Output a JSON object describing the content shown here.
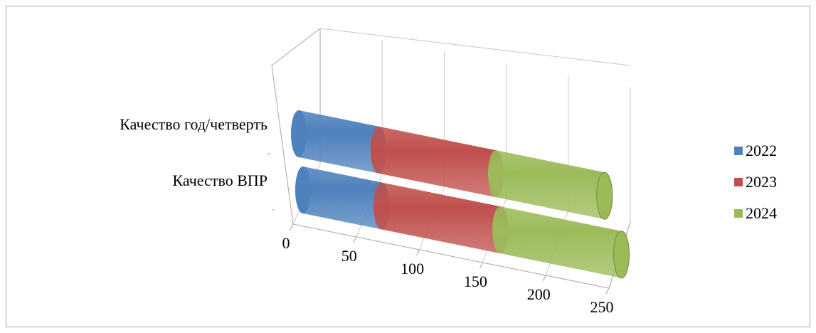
{
  "chart_data": {
    "type": "bar",
    "orientation": "horizontal",
    "stacked": true,
    "style": "3d-cylinder",
    "categories": [
      "Качество ВПР",
      "Качество год/четверть"
    ],
    "series": [
      {
        "name": "2022",
        "color": "#4f81bd",
        "values": [
          62,
          63
        ]
      },
      {
        "name": "2023",
        "color": "#c0504d",
        "values": [
          94,
          93
        ]
      },
      {
        "name": "2024",
        "color": "#9bbb59",
        "values": [
          96,
          86
        ]
      }
    ],
    "xlim": [
      0,
      250
    ],
    "x_ticks": [
      "0",
      "50",
      "100",
      "150",
      "200",
      "250"
    ],
    "title": "",
    "xlabel": "",
    "ylabel": "",
    "grid": true,
    "legend_position": "right"
  }
}
